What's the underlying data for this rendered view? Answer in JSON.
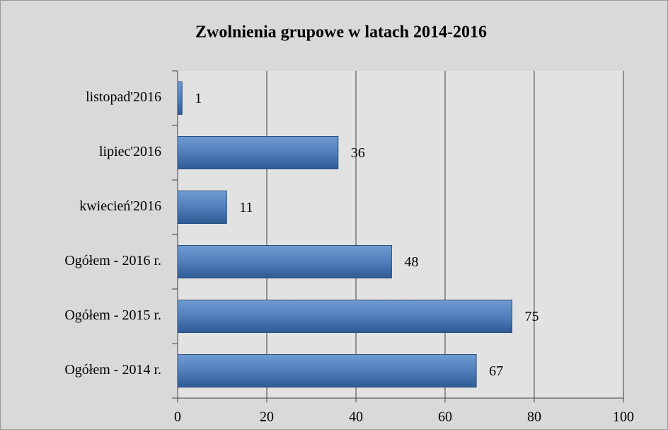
{
  "chart_data": {
    "type": "hbar",
    "title": "Zwolnienia grupowe w  latach 2014-2016",
    "categories": [
      "listopad'2016",
      "lipiec'2016",
      "kwiecień'2016",
      "Ogółem - 2016 r.",
      "Ogółem - 2015 r.",
      "Ogółem - 2014 r."
    ],
    "values": [
      1,
      36,
      11,
      48,
      75,
      67
    ],
    "color": "#4f81bd",
    "xlim": [
      0,
      100
    ],
    "xticks": [
      0,
      20,
      40,
      60,
      80,
      100
    ],
    "grid": true
  }
}
